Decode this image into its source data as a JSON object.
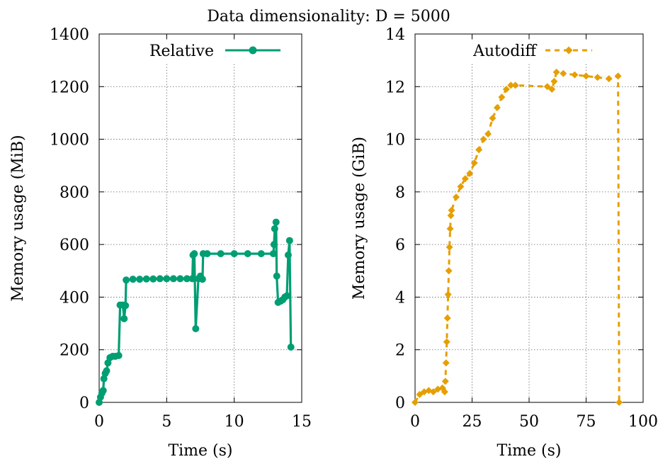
{
  "chart_data": {
    "title": "Data dimensionality: D = 5000",
    "panels": [
      {
        "type": "line",
        "name": "relative",
        "series": [
          {
            "name": "Relative",
            "color": "#009e73",
            "marker": "circle",
            "style": "solid",
            "points": [
              [
                0.0,
                0
              ],
              [
                0.1,
                20
              ],
              [
                0.2,
                35
              ],
              [
                0.3,
                45
              ],
              [
                0.35,
                90
              ],
              [
                0.45,
                110
              ],
              [
                0.55,
                120
              ],
              [
                0.65,
                150
              ],
              [
                0.8,
                170
              ],
              [
                1.0,
                175
              ],
              [
                1.2,
                175
              ],
              [
                1.45,
                178
              ],
              [
                1.55,
                370
              ],
              [
                1.75,
                370
              ],
              [
                1.85,
                318
              ],
              [
                1.95,
                368
              ],
              [
                2.0,
                465
              ],
              [
                2.5,
                468
              ],
              [
                3.0,
                468
              ],
              [
                3.5,
                469
              ],
              [
                4.0,
                469
              ],
              [
                4.5,
                470
              ],
              [
                5.0,
                470
              ],
              [
                5.5,
                470
              ],
              [
                6.0,
                470
              ],
              [
                6.5,
                470
              ],
              [
                6.9,
                470
              ],
              [
                6.95,
                560
              ],
              [
                7.05,
                565
              ],
              [
                7.15,
                280
              ],
              [
                7.35,
                470
              ],
              [
                7.5,
                480
              ],
              [
                7.65,
                468
              ],
              [
                7.7,
                565
              ],
              [
                8.0,
                565
              ],
              [
                9.0,
                565
              ],
              [
                10.0,
                565
              ],
              [
                11.0,
                565
              ],
              [
                12.0,
                565
              ],
              [
                12.9,
                565
              ],
              [
                12.95,
                600
              ],
              [
                13.0,
                660
              ],
              [
                13.1,
                685
              ],
              [
                13.15,
                480
              ],
              [
                13.25,
                380
              ],
              [
                13.45,
                385
              ],
              [
                13.6,
                390
              ],
              [
                13.75,
                400
              ],
              [
                13.9,
                405
              ],
              [
                14.0,
                560
              ],
              [
                14.1,
                615
              ],
              [
                14.2,
                210
              ]
            ]
          }
        ],
        "xlabel": "Time (s)",
        "ylabel": "Memory usage (MiB)",
        "xlim": [
          0,
          15
        ],
        "ylim": [
          0,
          1400
        ],
        "xticks": [
          0,
          5,
          10,
          15
        ],
        "yticks": [
          0,
          200,
          400,
          600,
          800,
          1000,
          1200,
          1400
        ],
        "grid": true,
        "legend": "top-center"
      },
      {
        "type": "line",
        "name": "autodiff",
        "series": [
          {
            "name": "Autodiff",
            "color": "#e69f00",
            "marker": "diamond",
            "style": "dashed",
            "points": [
              [
                0,
                0
              ],
              [
                2,
                0.3
              ],
              [
                4,
                0.4
              ],
              [
                6,
                0.45
              ],
              [
                8,
                0.4
              ],
              [
                10,
                0.5
              ],
              [
                12,
                0.55
              ],
              [
                13,
                0.4
              ],
              [
                13.3,
                0.8
              ],
              [
                13.6,
                1.5
              ],
              [
                13.9,
                2.3
              ],
              [
                14.2,
                3.2
              ],
              [
                14.5,
                4.1
              ],
              [
                14.8,
                5.0
              ],
              [
                15.1,
                5.9
              ],
              [
                15.4,
                6.6
              ],
              [
                15.7,
                7.1
              ],
              [
                16,
                7.3
              ],
              [
                18,
                7.8
              ],
              [
                20,
                8.2
              ],
              [
                22,
                8.5
              ],
              [
                24,
                8.7
              ],
              [
                26,
                9.1
              ],
              [
                28,
                9.6
              ],
              [
                30,
                10.0
              ],
              [
                32,
                10.2
              ],
              [
                34,
                10.8
              ],
              [
                36,
                11.2
              ],
              [
                38,
                11.6
              ],
              [
                40,
                11.9
              ],
              [
                42,
                12.05
              ],
              [
                44,
                12.05
              ],
              [
                58,
                12.0
              ],
              [
                60,
                11.9
              ],
              [
                61,
                12.2
              ],
              [
                62,
                12.55
              ],
              [
                65,
                12.5
              ],
              [
                70,
                12.45
              ],
              [
                75,
                12.4
              ],
              [
                80,
                12.35
              ],
              [
                85,
                12.3
              ],
              [
                89,
                12.4
              ],
              [
                89.5,
                0
              ]
            ]
          }
        ],
        "xlabel": "Time (s)",
        "ylabel": "Memory usage (GiB)",
        "xlim": [
          0,
          100
        ],
        "ylim": [
          0,
          14
        ],
        "xticks": [
          0,
          25,
          50,
          75,
          100
        ],
        "yticks": [
          0,
          2,
          4,
          6,
          8,
          10,
          12,
          14
        ],
        "grid": true,
        "legend": "top-center"
      }
    ]
  }
}
